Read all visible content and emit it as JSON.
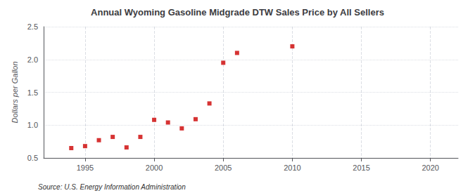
{
  "chart_data": {
    "type": "scatter",
    "title": "Annual Wyoming Gasoline Midgrade DTW Sales Price by All Sellers",
    "ylabel": "Dollars per Gallon",
    "annotations": [
      "Source: U.S. Energy Information Administration"
    ],
    "x": [
      1994,
      1995,
      1996,
      1997,
      1998,
      1999,
      2000,
      2001,
      2002,
      2003,
      2004,
      2005,
      2006,
      2010
    ],
    "values": [
      0.65,
      0.68,
      0.77,
      0.82,
      0.66,
      0.82,
      1.08,
      1.04,
      0.95,
      1.09,
      1.33,
      1.95,
      2.1,
      2.2
    ],
    "color": "#cc0000",
    "marker": "square",
    "xlim": [
      1992,
      2022
    ],
    "ylim": [
      0.5,
      2.5
    ],
    "xticks": [
      1995,
      2000,
      2005,
      2010,
      2015,
      2020
    ],
    "yticks": [
      0.5,
      {
        "value": 1,
        "label": "1.0"
      },
      1.5,
      {
        "value": 2,
        "label": "2.0"
      },
      2.5
    ],
    "grid": true
  }
}
